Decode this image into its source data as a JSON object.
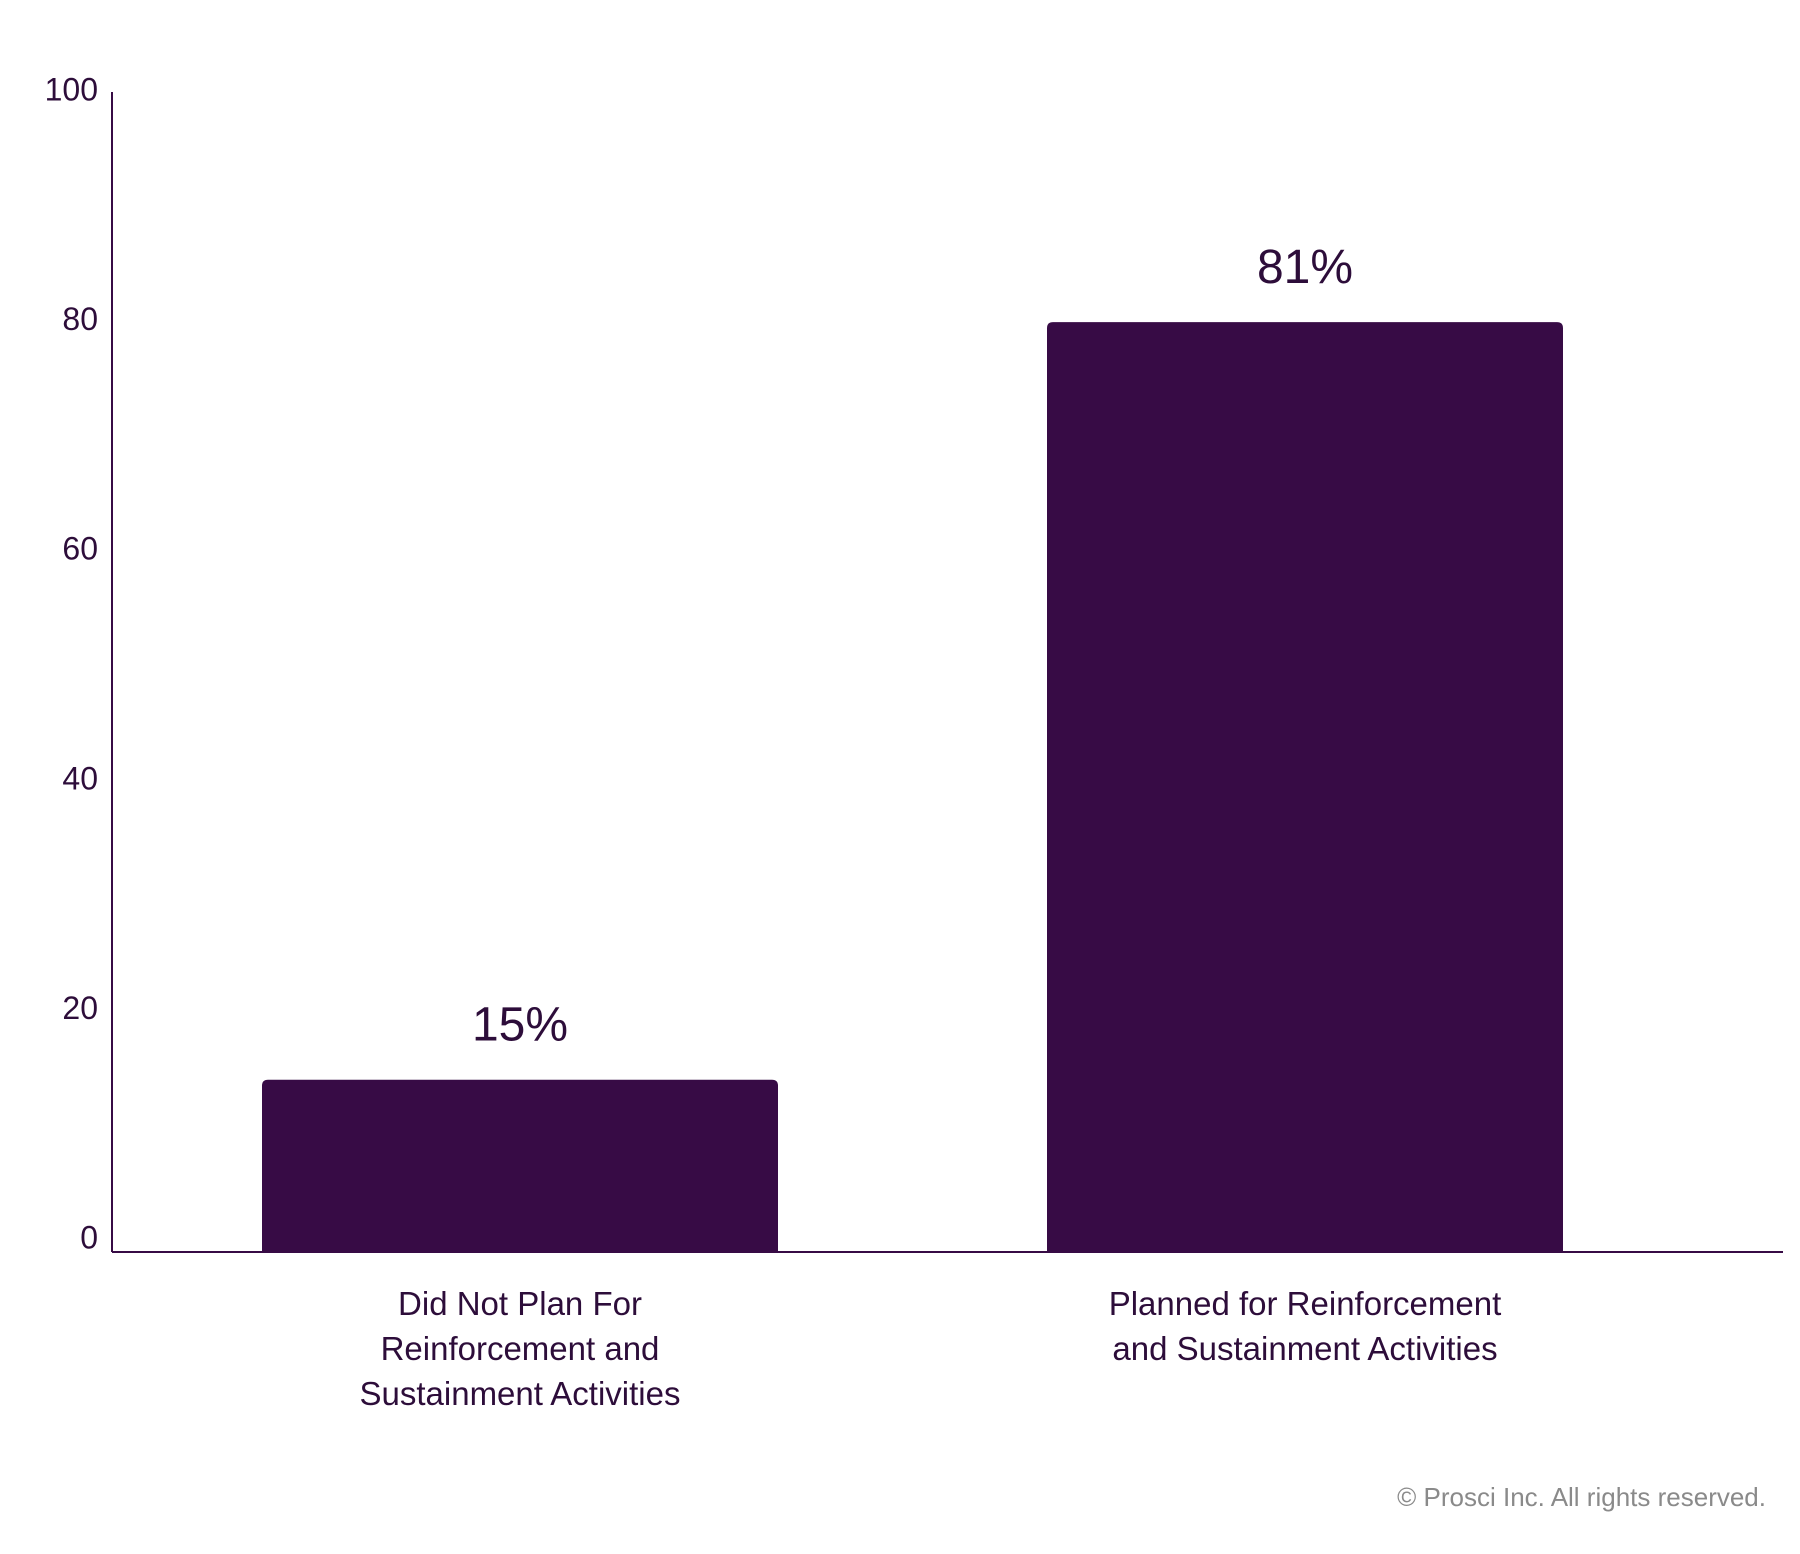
{
  "chart_data": {
    "type": "bar",
    "categories": [
      "Did Not Plan For Reinforcement and Sustainment Activities",
      "Planned for Reinforcement and Sustainment Activities"
    ],
    "values": [
      15,
      81
    ],
    "value_labels": [
      "15%",
      "81%"
    ],
    "color": "#370b45",
    "ylim": [
      0,
      100
    ],
    "yticks": [
      0,
      20,
      40,
      60,
      80,
      100
    ],
    "grid": false
  },
  "footer": {
    "copyright": "© Prosci Inc. All rights reserved."
  }
}
